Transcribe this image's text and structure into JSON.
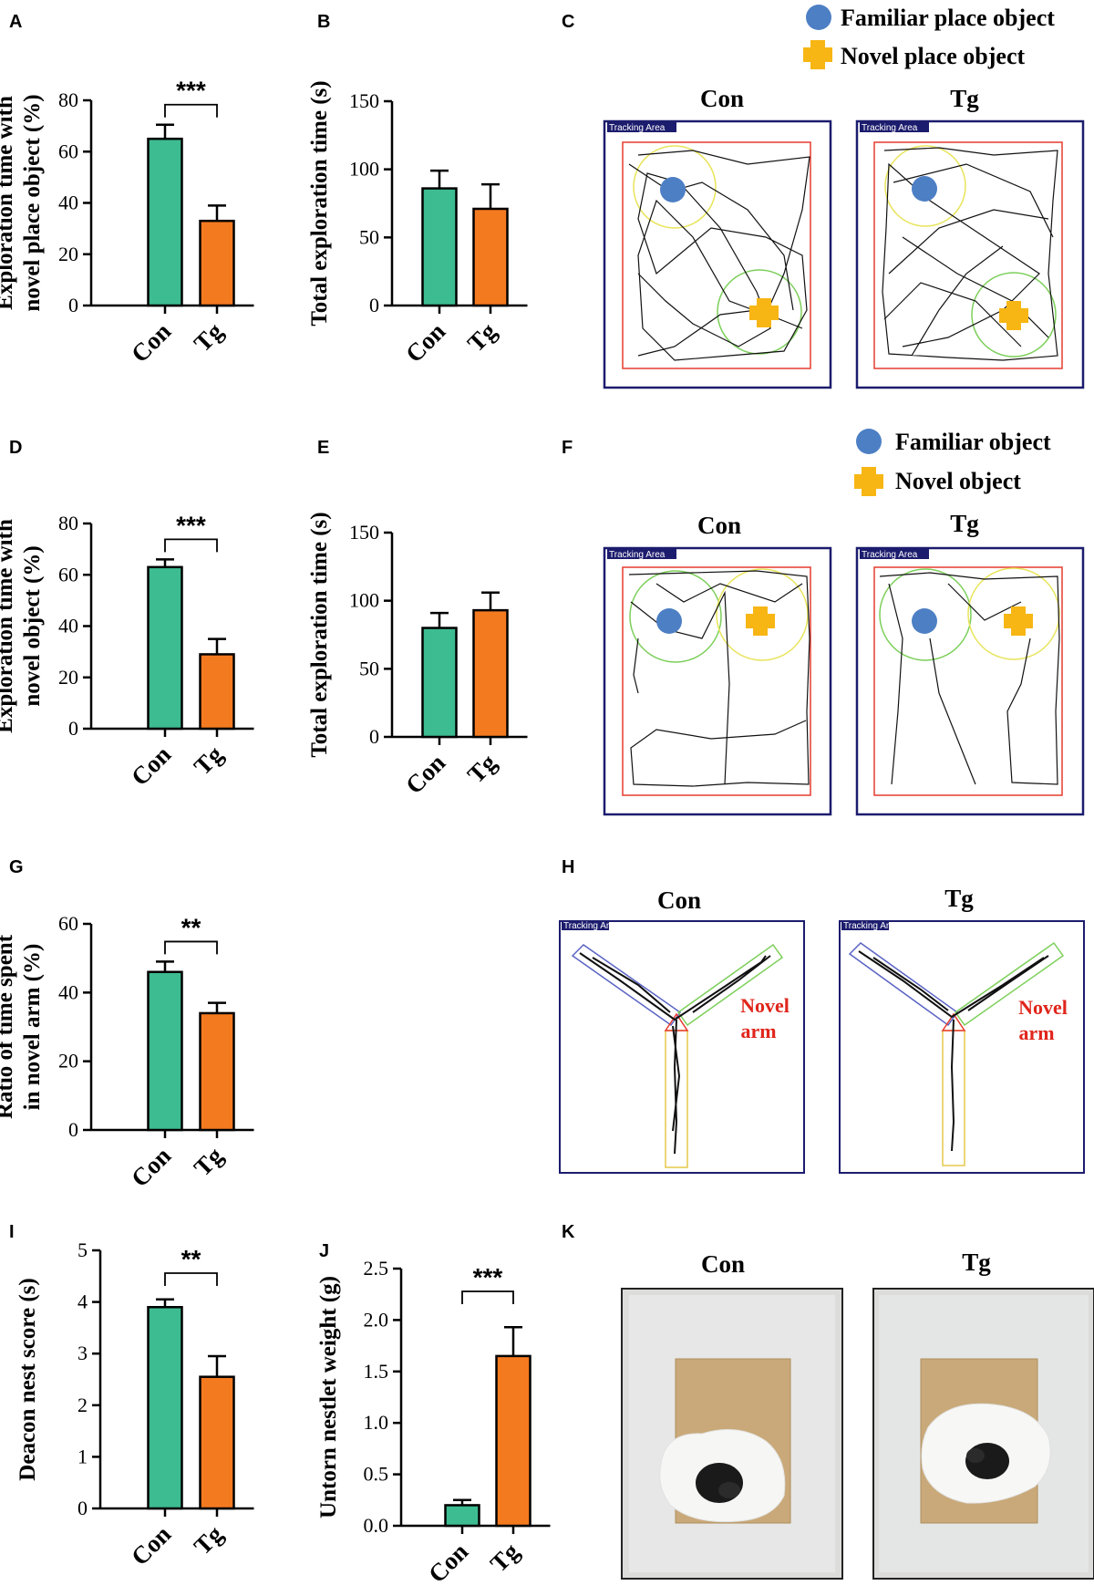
{
  "colors": {
    "con": "#3dbb91",
    "tg": "#f47a20",
    "familiar": "#4d7fc4",
    "novel": "#f7b614",
    "box": "#1c1c6e",
    "arena": "#e63b2e",
    "zone_green": "#7ccf5a",
    "zone_yellow": "#e8e45a",
    "arm_blue": "#5a63c4",
    "arm_yellow": "#e6c94a",
    "novel_arm_text": "#e0261c"
  },
  "chart_data": [
    {
      "id": "A",
      "type": "bar",
      "panel": "A",
      "categories": [
        "Con",
        "Tg"
      ],
      "values": [
        65,
        33
      ],
      "errors": [
        5.5,
        6
      ],
      "ylabel_lines": [
        "Exploration time with",
        "novel place object (%)"
      ],
      "ylim": [
        0,
        80
      ],
      "ticks": [
        "0",
        "20",
        "40",
        "60",
        "80"
      ],
      "significance": "***"
    },
    {
      "id": "B",
      "type": "bar",
      "panel": "B",
      "categories": [
        "Con",
        "Tg"
      ],
      "values": [
        86,
        71
      ],
      "errors": [
        13,
        18
      ],
      "ylabel_lines": [
        "Total exploration time (s)"
      ],
      "ylim": [
        0,
        150
      ],
      "ticks": [
        "0",
        "50",
        "100",
        "150"
      ],
      "significance": ""
    },
    {
      "id": "D",
      "type": "bar",
      "panel": "D",
      "categories": [
        "Con",
        "Tg"
      ],
      "values": [
        63,
        29
      ],
      "errors": [
        3,
        6
      ],
      "ylabel_lines": [
        "Exploration time with",
        "novel object (%)"
      ],
      "ylim": [
        0,
        80
      ],
      "ticks": [
        "0",
        "20",
        "40",
        "60",
        "80"
      ],
      "significance": "***"
    },
    {
      "id": "E",
      "type": "bar",
      "panel": "E",
      "categories": [
        "Con",
        "Tg"
      ],
      "values": [
        80,
        93
      ],
      "errors": [
        11,
        13
      ],
      "ylabel_lines": [
        "Total exploration time (s)"
      ],
      "ylim": [
        0,
        150
      ],
      "ticks": [
        "0",
        "50",
        "100",
        "150"
      ],
      "significance": ""
    },
    {
      "id": "G",
      "type": "bar",
      "panel": "G",
      "categories": [
        "Con",
        "Tg"
      ],
      "values": [
        46,
        34
      ],
      "errors": [
        3,
        3
      ],
      "ylabel_lines": [
        "Ratio of time spent",
        "in novel arm (%)"
      ],
      "ylim": [
        0,
        60
      ],
      "ticks": [
        "0",
        "20",
        "40",
        "60"
      ],
      "significance": "**"
    },
    {
      "id": "I",
      "type": "bar",
      "panel": "I",
      "categories": [
        "Con",
        "Tg"
      ],
      "values": [
        3.9,
        2.55
      ],
      "errors": [
        0.15,
        0.4
      ],
      "ylabel_lines": [
        "Deacon nest score (s)"
      ],
      "ylim": [
        0,
        5
      ],
      "ticks": [
        "0",
        "1",
        "2",
        "3",
        "4",
        "5"
      ],
      "significance": "**"
    },
    {
      "id": "J",
      "type": "bar",
      "panel": "J",
      "categories": [
        "Con",
        "Tg"
      ],
      "values": [
        0.2,
        1.65
      ],
      "errors": [
        0.05,
        0.28
      ],
      "ylabel_lines": [
        "Untorn nestlet weight (g)"
      ],
      "ylim": [
        0,
        2.5
      ],
      "ticks": [
        "0.0",
        "0.5",
        "1.0",
        "1.5",
        "2.0",
        "2.5"
      ],
      "significance": "***"
    }
  ],
  "panels": {
    "C": {
      "letter": "C",
      "legend": [
        "Familiar place object",
        "Novel place object"
      ],
      "groups": [
        "Con",
        "Tg"
      ],
      "tracking_label": "Tracking Area"
    },
    "F": {
      "letter": "F",
      "legend": [
        "Familiar object",
        "Novel object"
      ],
      "groups": [
        "Con",
        "Tg"
      ],
      "tracking_label": "Tracking Area"
    },
    "H": {
      "letter": "H",
      "groups": [
        "Con",
        "Tg"
      ],
      "tracking_label": "Tracking Area",
      "novel_arm": [
        "Novel",
        "arm"
      ]
    },
    "K": {
      "letter": "K",
      "groups": [
        "Con",
        "Tg"
      ]
    }
  }
}
